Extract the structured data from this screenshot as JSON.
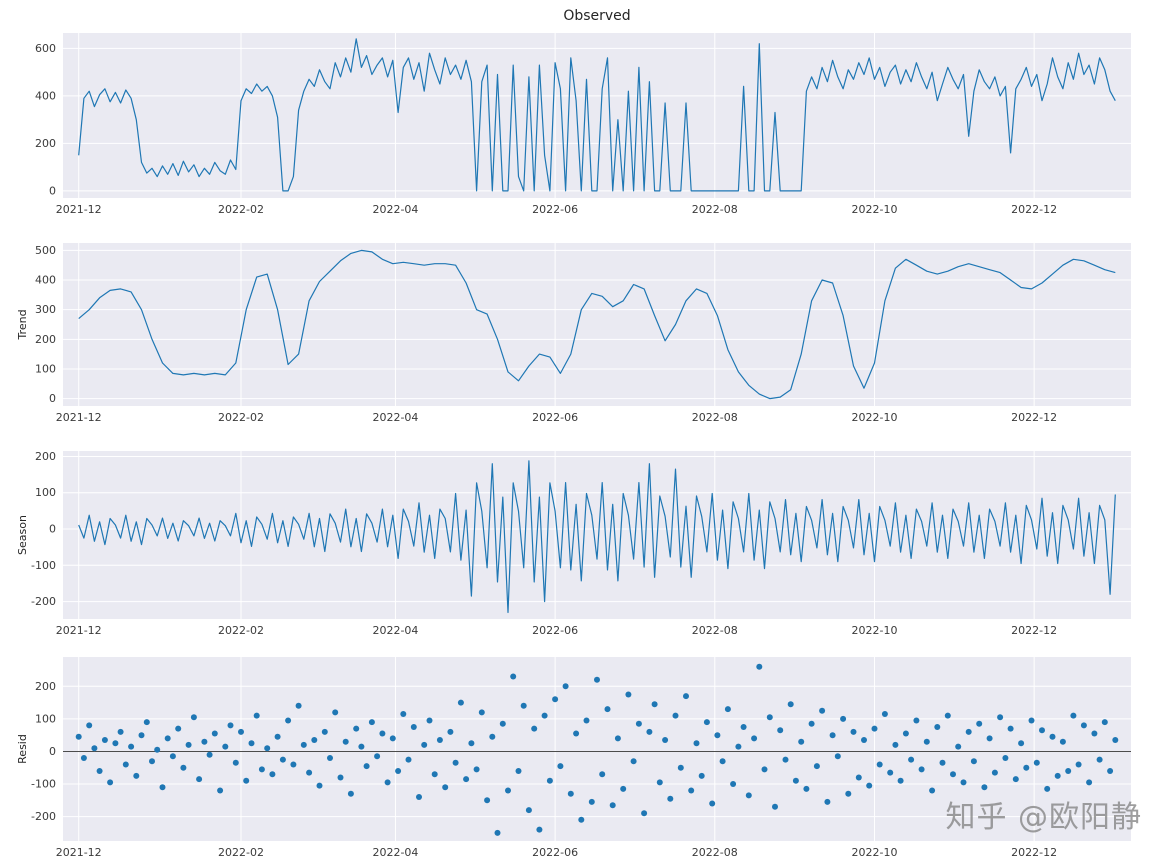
{
  "figure": {
    "title": "Observed",
    "background": "#ffffff",
    "panel_background": "#eaeaf2",
    "grid_color": "#ffffff",
    "line_color": "#1f77b4",
    "tick_color": "#3a3a3a"
  },
  "watermark": {
    "text": "知乎 @欧阳静",
    "color": "#868686"
  },
  "x_axis": {
    "start_date": "2021-12-01",
    "tick_labels": [
      "2021-12",
      "2022-02",
      "2022-04",
      "2022-06",
      "2022-08",
      "2022-10",
      "2022-12"
    ],
    "tick_days": [
      0,
      62,
      121,
      182,
      243,
      304,
      365
    ],
    "end_day": 396
  },
  "chart_data": [
    {
      "type": "line",
      "name": "observed",
      "title": "Observed",
      "ylabel": "",
      "yticks": [
        0,
        200,
        400,
        600
      ],
      "ylim": [
        -30,
        665
      ],
      "x_step_days": 2,
      "values": [
        150,
        390,
        420,
        355,
        405,
        430,
        375,
        415,
        370,
        425,
        390,
        300,
        120,
        75,
        95,
        60,
        105,
        70,
        115,
        65,
        125,
        80,
        110,
        60,
        95,
        70,
        120,
        85,
        70,
        130,
        90,
        380,
        430,
        410,
        450,
        420,
        440,
        400,
        310,
        0,
        0,
        60,
        340,
        420,
        470,
        440,
        510,
        460,
        430,
        540,
        480,
        560,
        500,
        640,
        520,
        570,
        490,
        530,
        560,
        480,
        550,
        330,
        520,
        560,
        470,
        540,
        420,
        580,
        510,
        450,
        560,
        490,
        530,
        470,
        550,
        460,
        0,
        460,
        530,
        0,
        490,
        0,
        0,
        530,
        60,
        0,
        480,
        0,
        530,
        150,
        0,
        540,
        430,
        0,
        560,
        380,
        0,
        470,
        0,
        0,
        430,
        560,
        0,
        300,
        0,
        420,
        0,
        520,
        0,
        460,
        0,
        0,
        370,
        0,
        0,
        0,
        370,
        0,
        0,
        0,
        0,
        0,
        0,
        0,
        0,
        0,
        0,
        440,
        0,
        0,
        620,
        0,
        0,
        330,
        0,
        0,
        0,
        0,
        0,
        420,
        480,
        430,
        520,
        460,
        550,
        480,
        430,
        510,
        470,
        540,
        490,
        560,
        470,
        520,
        440,
        500,
        530,
        450,
        510,
        460,
        540,
        480,
        430,
        500,
        380,
        450,
        520,
        470,
        430,
        490,
        230,
        420,
        510,
        460,
        430,
        480,
        400,
        440,
        160,
        430,
        470,
        520,
        440,
        490,
        380,
        450,
        560,
        480,
        430,
        540,
        470,
        580,
        490,
        530,
        450,
        560,
        510,
        420,
        380
      ]
    },
    {
      "type": "line",
      "name": "trend",
      "ylabel": "Trend",
      "yticks": [
        0,
        100,
        200,
        300,
        400,
        500
      ],
      "ylim": [
        -25,
        525
      ],
      "x_step_days": 4,
      "values": [
        270,
        300,
        340,
        365,
        370,
        360,
        300,
        200,
        120,
        85,
        80,
        85,
        80,
        85,
        80,
        120,
        300,
        410,
        420,
        300,
        115,
        150,
        330,
        395,
        430,
        465,
        490,
        500,
        495,
        470,
        455,
        460,
        455,
        450,
        455,
        455,
        450,
        390,
        300,
        285,
        200,
        90,
        60,
        110,
        150,
        140,
        85,
        150,
        300,
        355,
        345,
        310,
        330,
        385,
        370,
        280,
        195,
        250,
        330,
        370,
        355,
        280,
        165,
        90,
        45,
        15,
        0,
        5,
        30,
        150,
        330,
        400,
        390,
        280,
        110,
        35,
        120,
        330,
        440,
        470,
        450,
        430,
        420,
        430,
        445,
        455,
        445,
        435,
        425,
        400,
        375,
        370,
        390,
        420,
        450,
        470,
        465,
        450,
        435,
        425
      ]
    },
    {
      "type": "line",
      "name": "seasonal",
      "ylabel": "Season",
      "yticks": [
        -200,
        -100,
        0,
        100,
        200
      ],
      "ylim": [
        -248,
        215
      ],
      "x_step_days": 2,
      "values": [
        11,
        -25,
        38,
        -34,
        20,
        -43,
        29,
        11,
        -25,
        38,
        -34,
        20,
        -43,
        29,
        11,
        -19,
        30,
        -26,
        16,
        -33,
        23,
        9,
        -19,
        30,
        -26,
        16,
        -33,
        23,
        9,
        -19,
        43,
        -38,
        23,
        -48,
        33,
        13,
        -28,
        43,
        -38,
        23,
        -48,
        33,
        13,
        -28,
        43,
        -49,
        29,
        -62,
        42,
        16,
        -36,
        55,
        -49,
        29,
        -62,
        42,
        16,
        -36,
        55,
        -49,
        38,
        -81,
        55,
        21,
        -47,
        72,
        -64,
        38,
        -81,
        55,
        29,
        -63,
        98,
        -86,
        52,
        -185,
        127,
        49,
        -107,
        180,
        -146,
        88,
        -230,
        127,
        49,
        -107,
        188,
        -146,
        88,
        -200,
        127,
        49,
        -107,
        128,
        -113,
        68,
        -143,
        98,
        38,
        -83,
        128,
        -113,
        68,
        -143,
        98,
        38,
        -83,
        128,
        -105,
        180,
        -133,
        91,
        35,
        -77,
        165,
        -105,
        63,
        -133,
        91,
        35,
        -63,
        98,
        -86,
        52,
        -109,
        75,
        29,
        -63,
        98,
        -86,
        52,
        -109,
        75,
        29,
        -63,
        81,
        -71,
        43,
        -90,
        62,
        24,
        -52,
        81,
        -71,
        43,
        -90,
        62,
        24,
        -52,
        81,
        -71,
        43,
        -90,
        62,
        24,
        -47,
        72,
        -64,
        38,
        -81,
        55,
        21,
        -47,
        72,
        -64,
        38,
        -81,
        55,
        21,
        -47,
        72,
        -64,
        38,
        -81,
        55,
        21,
        -47,
        72,
        -64,
        38,
        -95,
        65,
        25,
        -55,
        85,
        -75,
        45,
        -95,
        65,
        25,
        -55,
        85,
        -75,
        45,
        -95,
        65,
        25,
        -180,
        95
      ]
    },
    {
      "type": "scatter",
      "name": "resid",
      "ylabel": "Resid",
      "yticks": [
        -200,
        -100,
        0,
        100,
        200
      ],
      "ylim": [
        -275,
        290
      ],
      "x_step_days": 2,
      "zero_line": true,
      "values": [
        45,
        -20,
        80,
        10,
        -60,
        35,
        -95,
        25,
        60,
        -40,
        15,
        -75,
        50,
        90,
        -30,
        5,
        -110,
        40,
        -15,
        70,
        -50,
        20,
        105,
        -85,
        30,
        -10,
        55,
        -120,
        15,
        80,
        -35,
        60,
        -90,
        25,
        110,
        -55,
        10,
        -70,
        45,
        -25,
        95,
        -40,
        140,
        20,
        -65,
        35,
        -105,
        60,
        -20,
        120,
        -80,
        30,
        -130,
        70,
        15,
        -45,
        90,
        -15,
        55,
        -95,
        40,
        -60,
        115,
        -25,
        75,
        -140,
        20,
        95,
        -70,
        35,
        -110,
        60,
        -35,
        150,
        -85,
        25,
        -55,
        120,
        -150,
        45,
        -250,
        85,
        -120,
        230,
        -60,
        140,
        -180,
        70,
        -240,
        110,
        -90,
        160,
        -45,
        200,
        -130,
        55,
        -210,
        95,
        -155,
        220,
        -70,
        130,
        -165,
        40,
        -115,
        175,
        -30,
        85,
        -190,
        60,
        145,
        -95,
        35,
        -145,
        110,
        -50,
        170,
        -120,
        25,
        -75,
        90,
        -160,
        50,
        -30,
        130,
        -100,
        15,
        75,
        -135,
        40,
        260,
        -55,
        105,
        -170,
        65,
        -25,
        145,
        -90,
        30,
        -115,
        85,
        -45,
        125,
        -155,
        50,
        -15,
        100,
        -130,
        60,
        -80,
        35,
        -105,
        70,
        -40,
        115,
        -65,
        20,
        -90,
        55,
        -25,
        95,
        -55,
        30,
        -120,
        75,
        -35,
        110,
        -70,
        15,
        -95,
        60,
        -30,
        85,
        -110,
        40,
        -65,
        105,
        -20,
        70,
        -85,
        25,
        -50,
        95,
        -35,
        65,
        -115,
        45,
        -75,
        30,
        -60,
        110,
        -40,
        80,
        -95,
        55,
        -25,
        90,
        -60,
        35
      ]
    }
  ]
}
